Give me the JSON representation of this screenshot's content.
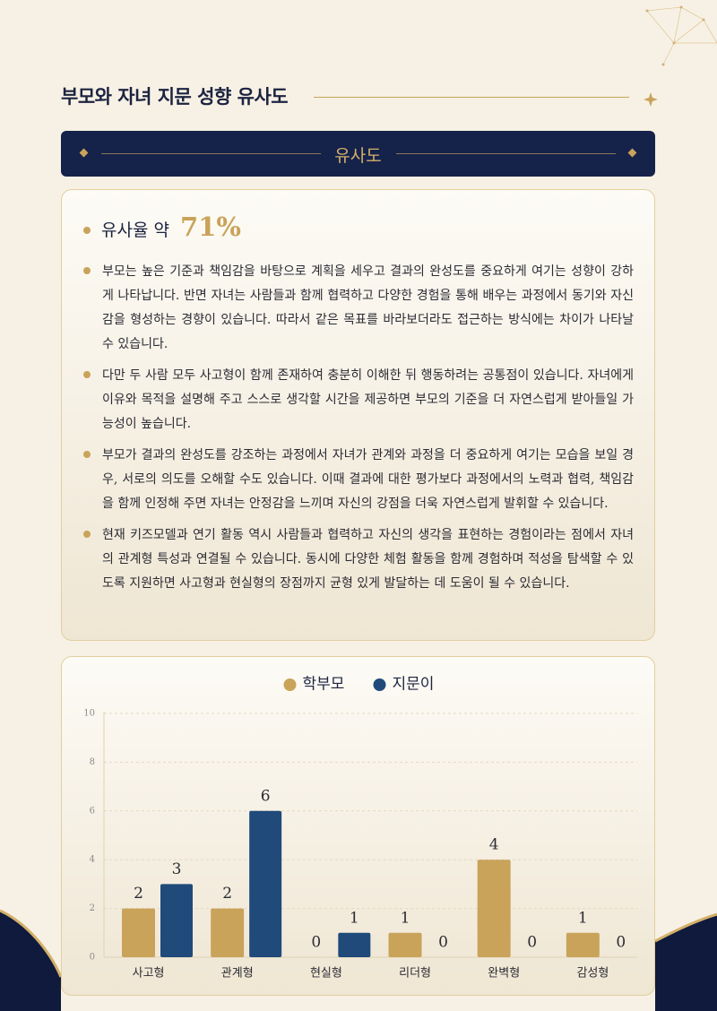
{
  "header": {
    "title": "부모와 자녀 지문 성향 유사도"
  },
  "section": {
    "title": "유사도"
  },
  "summary": {
    "label": "유사율 약",
    "value": "71%"
  },
  "bullets": [
    "부모는 높은 기준과 책임감을 바탕으로 계획을 세우고 결과의 완성도를 중요하게 여기는 성향이 강하게 나타납니다. 반면 자녀는 사람들과 함께 협력하고 다양한 경험을 통해 배우는 과정에서 동기와 자신감을 형성하는 경향이 있습니다. 따라서 같은 목표를 바라보더라도 접근하는 방식에는 차이가 나타날 수 있습니다.",
    "다만 두 사람 모두 사고형이 함께 존재하여 충분히 이해한 뒤 행동하려는 공통점이 있습니다. 자녀에게 이유와 목적을 설명해 주고 스스로 생각할 시간을 제공하면 부모의 기준을 더 자연스럽게 받아들일 가능성이 높습니다.",
    "부모가 결과의 완성도를 강조하는 과정에서 자녀가 관계와 과정을 더 중요하게 여기는 모습을 보일 경우, 서로의 의도를 오해할 수도 있습니다. 이때 결과에 대한 평가보다 과정에서의 노력과 협력, 책임감을 함께 인정해 주면 자녀는 안정감을 느끼며 자신의 강점을 더욱 자연스럽게 발휘할 수 있습니다.",
    "현재 키즈모델과 연기 활동 역시 사람들과 협력하고 자신의 생각을 표현하는 경험이라는 점에서 자녀의 관계형 특성과 연결될 수 있습니다. 동시에 다양한 체험 활동을 함께 경험하며 적성을 탐색할 수 있도록 지원하면 사고형과 현실형의 장점까지 균형 있게 발달하는 데 도움이 될 수 있습니다."
  ],
  "chart_data": {
    "type": "bar",
    "categories": [
      "사고형",
      "관계형",
      "현실형",
      "리더형",
      "완벽형",
      "감성형"
    ],
    "series": [
      {
        "name": "학부모",
        "color": "#c9a35a",
        "values": [
          2,
          2,
          0,
          1,
          4,
          1
        ]
      },
      {
        "name": "지문이",
        "color": "#1f4a7a",
        "values": [
          3,
          6,
          1,
          0,
          0,
          0
        ]
      }
    ],
    "ylim": [
      0,
      10
    ],
    "yticks": [
      0,
      2,
      4,
      6,
      8,
      10
    ],
    "grid": true
  }
}
